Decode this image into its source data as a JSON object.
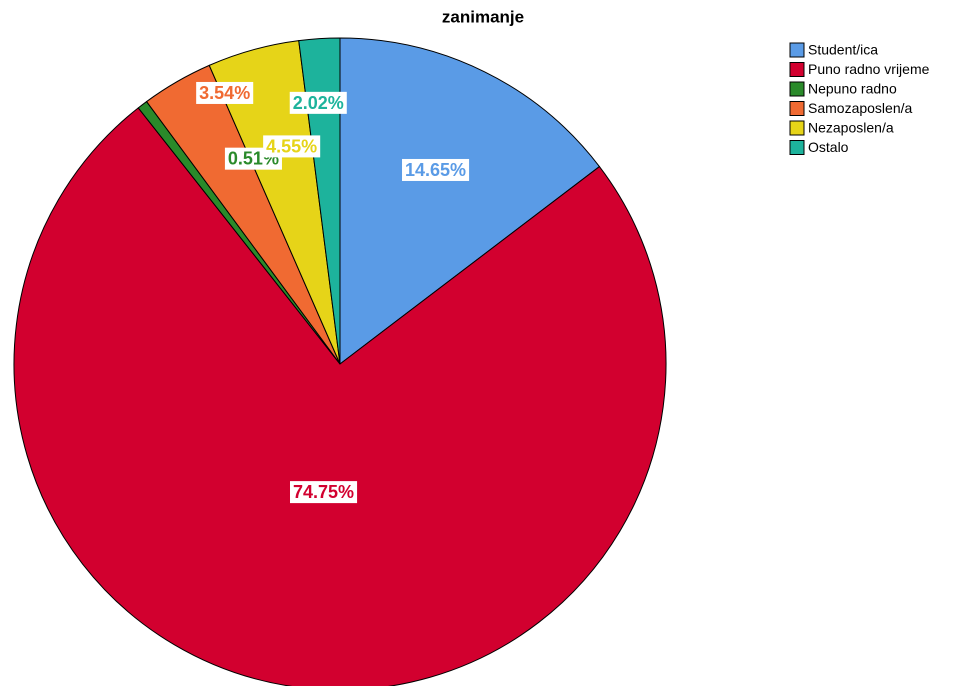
{
  "chart_data": {
    "type": "pie",
    "title": "zanimanje",
    "categories": [
      "Student/ica",
      "Puno radno vrijeme",
      "Nepuno radno",
      "Samozaposlen/a",
      "Nezaposlen/a",
      "Ostalo"
    ],
    "values": [
      14.65,
      74.75,
      0.51,
      3.54,
      4.55,
      2.02
    ],
    "value_labels": [
      "14.65%",
      "74.75%",
      "0.51%",
      "3.54%",
      "4.55%",
      "2.02%"
    ],
    "colors": [
      "#5a9be6",
      "#d2002f",
      "#2a8a2a",
      "#f06a32",
      "#e6d418",
      "#1db39c"
    ],
    "legend": "top-right"
  }
}
